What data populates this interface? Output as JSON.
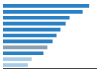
{
  "chart_data": {
    "type": "bar",
    "orientation": "horizontal",
    "categories": [
      null,
      null,
      null,
      null,
      null,
      null,
      null,
      null,
      null,
      null,
      null
    ],
    "values": [
      33.0,
      30.5,
      25.5,
      24.0,
      22.0,
      20.5,
      19.0,
      17.0,
      15.5,
      11.0,
      9.5
    ],
    "colors": [
      "#2980c4",
      "#2980c4",
      "#2980c4",
      "#2980c4",
      "#2980c4",
      "#2980c4",
      "#2980c4",
      "#8c9fb0",
      "#2980c4",
      "#a8cce8",
      "#a8cce8"
    ],
    "xlim": [
      0,
      36
    ],
    "grid": false,
    "tick_labels": false
  }
}
